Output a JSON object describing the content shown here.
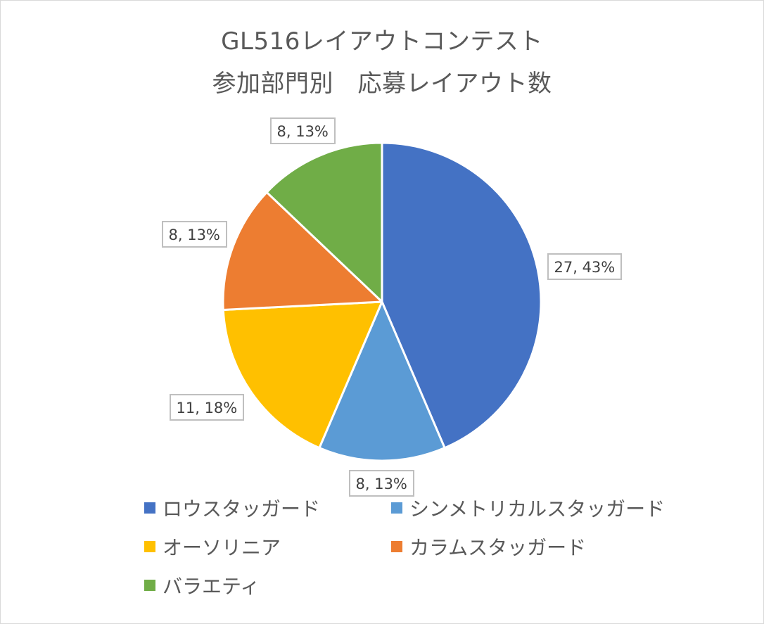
{
  "chart_data": {
    "type": "pie",
    "title": "GL516レイアウトコンテスト",
    "subtitle": "参加部門別　応募レイアウト数",
    "categories": [
      "ロウスタッガード",
      "シンメトリカルスタッガード",
      "オーソリニア",
      "カラムスタッガード",
      "バラエティ"
    ],
    "values": [
      27,
      8,
      11,
      8,
      8
    ],
    "data_labels": [
      "27, 43%",
      "8, 13%",
      "11, 18%",
      "8, 13%",
      "8, 13%"
    ],
    "colors": [
      "#4472c4",
      "#5b9bd5",
      "#ffc000",
      "#ed7d31",
      "#70ad47"
    ],
    "start_angle": "12 o'clock",
    "direction": "clockwise",
    "legend_position": "bottom"
  }
}
